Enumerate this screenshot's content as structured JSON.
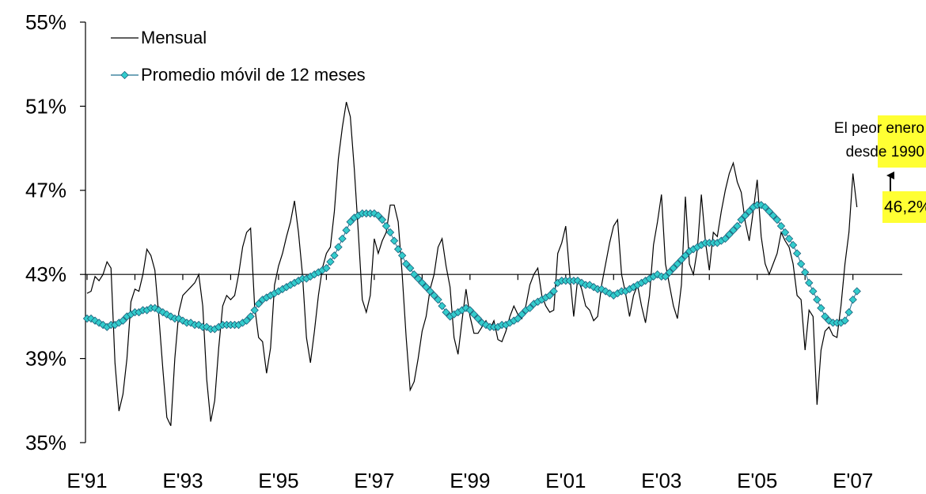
{
  "chart_data": {
    "type": "line",
    "categories": [
      "E'91",
      null,
      null,
      null,
      null,
      null,
      null,
      null,
      null,
      null,
      null,
      null,
      null,
      null,
      null,
      null,
      null,
      null,
      null,
      null,
      null,
      null,
      null,
      null,
      "E'93",
      null,
      null,
      null,
      null,
      null,
      null,
      null,
      null,
      null,
      null,
      null,
      null,
      null,
      null,
      null,
      null,
      null,
      null,
      null,
      null,
      null,
      null,
      null,
      "E'95",
      null,
      null,
      null,
      null,
      null,
      null,
      null,
      null,
      null,
      null,
      null,
      null,
      null,
      null,
      null,
      null,
      null,
      null,
      null,
      null,
      null,
      null,
      null,
      "E'97",
      null,
      null,
      null,
      null,
      null,
      null,
      null,
      null,
      null,
      null,
      null,
      null,
      null,
      null,
      null,
      null,
      null,
      null,
      null,
      null,
      null,
      null,
      null,
      "E'99",
      null,
      null,
      null,
      null,
      null,
      null,
      null,
      null,
      null,
      null,
      null,
      null,
      null,
      null,
      null,
      null,
      null,
      null,
      null,
      null,
      null,
      null,
      null,
      "E'01",
      null,
      null,
      null,
      null,
      null,
      null,
      null,
      null,
      null,
      null,
      null,
      null,
      null,
      null,
      null,
      null,
      null,
      null,
      null,
      null,
      null,
      null,
      null,
      "E'03",
      null,
      null,
      null,
      null,
      null,
      null,
      null,
      null,
      null,
      null,
      null,
      null,
      null,
      null,
      null,
      null,
      null,
      null,
      null,
      null,
      null,
      null,
      null,
      "E'05",
      null,
      null,
      null,
      null,
      null,
      null,
      null,
      null,
      null,
      null,
      null,
      null,
      null,
      null,
      null,
      null,
      null,
      null,
      null,
      null,
      null,
      null,
      null,
      "E'07",
      null
    ],
    "series": [
      {
        "name": "Mensual",
        "color": "#000000",
        "marker": "none",
        "values": [
          42.1,
          42.2,
          42.9,
          42.7,
          43.0,
          43.6,
          43.3,
          38.8,
          36.5,
          37.3,
          39.0,
          41.7,
          42.3,
          42.2,
          43.0,
          44.2,
          43.9,
          43.2,
          41.0,
          38.5,
          36.2,
          35.8,
          39.0,
          41.2,
          42.0,
          42.2,
          42.4,
          42.6,
          43.0,
          41.5,
          38.0,
          36.0,
          37.0,
          39.5,
          41.5,
          42.0,
          41.8,
          42.0,
          43.0,
          44.3,
          45.0,
          45.2,
          41.5,
          40.0,
          39.8,
          38.3,
          39.5,
          42.5,
          43.4,
          44.0,
          44.8,
          45.5,
          46.5,
          45.0,
          43.0,
          40.0,
          38.8,
          40.3,
          42.0,
          43.3,
          44.0,
          44.3,
          46.0,
          48.5,
          50.0,
          51.2,
          50.5,
          48.0,
          45.0,
          41.8,
          41.2,
          42.0,
          44.7,
          44.0,
          44.6,
          45.0,
          46.3,
          46.3,
          45.5,
          43.0,
          40.0,
          37.5,
          37.9,
          39.0,
          40.3,
          41.0,
          42.3,
          43.0,
          44.3,
          44.7,
          43.4,
          42.4,
          40.0,
          39.2,
          40.8,
          42.3,
          41.0,
          40.2,
          40.2,
          40.5,
          40.8,
          40.4,
          40.8,
          39.9,
          39.8,
          40.3,
          41.0,
          41.5,
          41.1,
          40.9,
          41.5,
          42.5,
          43.0,
          43.3,
          42.0,
          41.5,
          41.2,
          41.3,
          44.0,
          44.5,
          45.3,
          43.0,
          41.0,
          42.8,
          42.3,
          41.5,
          41.3,
          40.8,
          41.0,
          42.5,
          43.5,
          44.5,
          45.3,
          45.6,
          43.0,
          42.1,
          41.0,
          42.0,
          42.5,
          41.5,
          40.7,
          42.0,
          44.4,
          45.5,
          46.8,
          43.5,
          42.5,
          41.5,
          40.9,
          42.5,
          46.7,
          43.5,
          43.0,
          44.2,
          46.8,
          44.6,
          43.2,
          45.0,
          44.8,
          46.0,
          47.0,
          47.8,
          48.3,
          47.4,
          46.9,
          45.5,
          44.6,
          46.0,
          47.5,
          44.8,
          43.5,
          43.0,
          43.5,
          44.0,
          45.0,
          44.6,
          44.3,
          43.5,
          42.0,
          41.8,
          39.4,
          41.3,
          41.0,
          36.8,
          39.4,
          40.3,
          40.5,
          40.1,
          40.0,
          41.5,
          43.5,
          45.0,
          47.8,
          46.2
        ]
      },
      {
        "name": "Promedio móvil de 12 meses",
        "color": "#33cccc",
        "marker": "diamond",
        "values": [
          40.9,
          40.9,
          40.8,
          40.7,
          40.6,
          40.5,
          40.6,
          40.6,
          40.7,
          40.8,
          41.0,
          41.1,
          41.2,
          41.2,
          41.3,
          41.3,
          41.4,
          41.4,
          41.3,
          41.2,
          41.1,
          41.0,
          40.9,
          40.9,
          40.8,
          40.7,
          40.7,
          40.6,
          40.6,
          40.5,
          40.5,
          40.4,
          40.4,
          40.5,
          40.6,
          40.6,
          40.6,
          40.6,
          40.6,
          40.7,
          40.8,
          41.0,
          41.3,
          41.6,
          41.8,
          41.9,
          42.0,
          42.1,
          42.2,
          42.3,
          42.4,
          42.5,
          42.6,
          42.7,
          42.8,
          42.8,
          42.9,
          43.0,
          43.1,
          43.2,
          43.3,
          43.6,
          43.9,
          44.3,
          44.7,
          45.1,
          45.5,
          45.7,
          45.8,
          45.9,
          45.9,
          45.9,
          45.9,
          45.8,
          45.6,
          45.3,
          45.0,
          44.6,
          44.2,
          43.9,
          43.5,
          43.3,
          43.0,
          42.8,
          42.6,
          42.4,
          42.2,
          42.0,
          41.8,
          41.5,
          41.2,
          41.0,
          41.1,
          41.2,
          41.3,
          41.4,
          41.3,
          41.1,
          40.9,
          40.7,
          40.6,
          40.5,
          40.5,
          40.5,
          40.6,
          40.6,
          40.7,
          40.8,
          40.9,
          41.1,
          41.3,
          41.4,
          41.6,
          41.7,
          41.8,
          41.9,
          42.0,
          42.2,
          42.6,
          42.7,
          42.7,
          42.7,
          42.7,
          42.7,
          42.6,
          42.5,
          42.5,
          42.4,
          42.3,
          42.3,
          42.2,
          42.1,
          42.0,
          42.1,
          42.2,
          42.2,
          42.3,
          42.4,
          42.5,
          42.6,
          42.7,
          42.8,
          42.9,
          43.0,
          42.9,
          42.9,
          43.1,
          43.3,
          43.5,
          43.7,
          43.9,
          44.1,
          44.2,
          44.3,
          44.4,
          44.5,
          44.5,
          44.5,
          44.5,
          44.6,
          44.7,
          44.9,
          45.1,
          45.3,
          45.6,
          45.8,
          46.0,
          46.2,
          46.3,
          46.3,
          46.2,
          46.0,
          45.8,
          45.6,
          45.3,
          45.0,
          44.7,
          44.4,
          44.0,
          43.5,
          43.1,
          42.6,
          42.2,
          41.8,
          41.4,
          41.0,
          40.8,
          40.7,
          40.7,
          40.7,
          40.8,
          41.2,
          41.8,
          42.2
        ]
      }
    ],
    "ylim": [
      35,
      55
    ],
    "yticks": [
      {
        "value": 35,
        "label": "35%"
      },
      {
        "value": 39,
        "label": "39%"
      },
      {
        "value": 43,
        "label": "43%"
      },
      {
        "value": 47,
        "label": "47%"
      },
      {
        "value": 51,
        "label": "51%"
      },
      {
        "value": 55,
        "label": "55%"
      }
    ],
    "x_axis_crosses_at": 43,
    "legend": "top-left",
    "annotations": [
      {
        "text": [
          "El peor enero",
          "desde 1990"
        ],
        "background": "#ffff33"
      },
      {
        "text": "46,2%",
        "background": "#ffff33"
      }
    ]
  }
}
